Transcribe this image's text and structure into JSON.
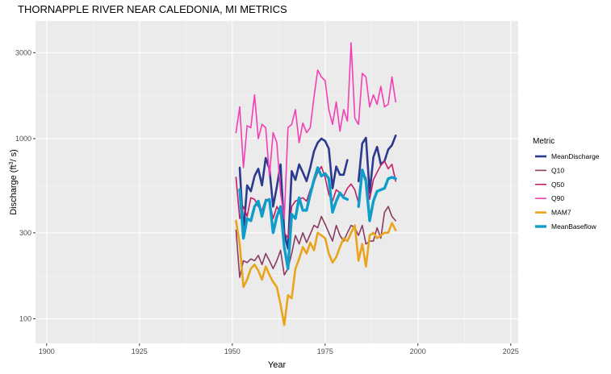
{
  "chart_data": {
    "type": "line",
    "title": "THORNAPPLE RIVER NEAR CALEDONIA, MI  METRICS",
    "xlabel": "Year",
    "ylabel_main": "Discharge (ft",
    "ylabel_sup": "3",
    "ylabel_tail": "/ s)",
    "y_scale": "log",
    "xlim": [
      1897,
      2027
    ],
    "ylim": [
      73,
      4500
    ],
    "x_ticks": [
      1900,
      1925,
      1950,
      1975,
      2000,
      2025
    ],
    "x_tick_labels": [
      "1900",
      "1925",
      "1950",
      "1975",
      "2000",
      "2025"
    ],
    "y_ticks": [
      100,
      300,
      1000,
      3000
    ],
    "y_tick_labels": [
      "100",
      "300",
      "1000",
      "3000"
    ],
    "grid": true,
    "legend_position": "right",
    "legend_title": "Metric",
    "series": [
      {
        "name": "MeanDischarge",
        "color": "#2b3a8f",
        "width": 2.6,
        "segments": [
          {
            "x": [
              1952,
              1953,
              1954,
              1955,
              1956,
              1957,
              1958,
              1959,
              1960,
              1961,
              1962,
              1963,
              1964,
              1965,
              1966,
              1967,
              1968,
              1969,
              1970,
              1971,
              1972,
              1973,
              1974,
              1975,
              1976,
              1977,
              1978,
              1979,
              1980,
              1981
            ],
            "y": [
              690,
              300,
              550,
              510,
              620,
              680,
              550,
              780,
              680,
              420,
              540,
              720,
              300,
              245,
              660,
              590,
              720,
              650,
              580,
              690,
              850,
              950,
              1000,
              970,
              880,
              530,
              700,
              630,
              630,
              760
            ]
          },
          {
            "x": [
              1984,
              1985,
              1986,
              1987,
              1988,
              1989,
              1990,
              1991,
              1992,
              1993,
              1994
            ],
            "y": [
              580,
              940,
              1010,
              500,
              790,
              900,
              720,
              750,
              870,
              920,
              1040
            ]
          }
        ]
      },
      {
        "name": "Q10",
        "color": "#8b3a62",
        "width": 1.6,
        "segments": [
          {
            "x": [
              1951,
              1952,
              1953,
              1954,
              1955,
              1956,
              1957,
              1958,
              1959,
              1960,
              1961,
              1962,
              1963,
              1964,
              1965,
              1966,
              1967,
              1968,
              1969,
              1970,
              1971,
              1972,
              1973,
              1974,
              1975,
              1976,
              1977,
              1978,
              1979,
              1980,
              1981,
              1982,
              1983,
              1984,
              1985,
              1986,
              1987,
              1988,
              1989,
              1990,
              1991,
              1992,
              1993,
              1994
            ],
            "y": [
              310,
              170,
              210,
              205,
              215,
              210,
              225,
              200,
              230,
              210,
              190,
              210,
              240,
              175,
              190,
              230,
              290,
              260,
              300,
              265,
              295,
              330,
              320,
              370,
              335,
              300,
              270,
              330,
              290,
              270,
              300,
              330,
              320,
              290,
              330,
              260,
              270,
              270,
              320,
              280,
              390,
              420,
              370,
              350
            ]
          }
        ]
      },
      {
        "name": "Q50",
        "color": "#c41e6a",
        "width": 1.6,
        "segments": [
          {
            "x": [
              1951,
              1952,
              1953,
              1954,
              1955,
              1956,
              1957,
              1958,
              1959,
              1960,
              1961,
              1962,
              1963,
              1964,
              1965,
              1966,
              1967,
              1968,
              1969,
              1970,
              1971,
              1972,
              1973,
              1974,
              1975,
              1976,
              1977,
              1978,
              1979,
              1980,
              1981,
              1982,
              1983,
              1984,
              1985,
              1986,
              1987,
              1988,
              1989,
              1990,
              1991,
              1992,
              1993,
              1994
            ],
            "y": [
              610,
              360,
              420,
              370,
              470,
              460,
              420,
              400,
              460,
              450,
              360,
              420,
              380,
              300,
              280,
              420,
              450,
              460,
              470,
              450,
              520,
              570,
              650,
              700,
              610,
              490,
              450,
              520,
              500,
              480,
              530,
              560,
              520,
              440,
              620,
              610,
              460,
              590,
              650,
              710,
              750,
              680,
              720,
              580
            ]
          }
        ]
      },
      {
        "name": "Q90",
        "color": "#f23fb6",
        "width": 1.6,
        "segments": [
          {
            "x": [
              1951,
              1952,
              1953,
              1954,
              1955,
              1956,
              1957,
              1958,
              1959,
              1960,
              1961,
              1962,
              1963,
              1964,
              1965,
              1966,
              1967,
              1968,
              1969,
              1970,
              1971,
              1972,
              1973,
              1974,
              1975,
              1976,
              1977,
              1978,
              1979,
              1980,
              1981,
              1982,
              1983,
              1984,
              1985,
              1986,
              1987,
              1988,
              1989,
              1990,
              1991,
              1992,
              1993,
              1994
            ],
            "y": [
              1080,
              1500,
              690,
              1180,
              1150,
              1750,
              1000,
              1200,
              1150,
              620,
              1080,
              950,
              500,
              360,
              1150,
              1200,
              1450,
              950,
              1220,
              1080,
              1150,
              1700,
              2400,
              2200,
              2100,
              1450,
              1200,
              1600,
              1100,
              1450,
              1250,
              3400,
              1300,
              1200,
              2300,
              2200,
              1500,
              1750,
              1550,
              1950,
              1500,
              1550,
              2200,
              1600
            ]
          }
        ]
      },
      {
        "name": "MAM7",
        "color": "#e9a41b",
        "width": 2.6,
        "segments": [
          {
            "x": [
              1951,
              1952,
              1953,
              1954,
              1955,
              1956,
              1957,
              1958,
              1959,
              1960,
              1961,
              1962,
              1963,
              1964,
              1965,
              1966,
              1967,
              1968,
              1969,
              1970,
              1971,
              1972,
              1973,
              1974,
              1975,
              1976,
              1977,
              1978,
              1979,
              1980,
              1981,
              1982,
              1983,
              1984,
              1985,
              1986,
              1987,
              1988,
              1989,
              1990,
              1991,
              1992,
              1993,
              1994
            ],
            "y": [
              350,
              260,
              150,
              165,
              190,
              200,
              185,
              165,
              195,
              175,
              160,
              150,
              120,
              92,
              135,
              130,
              190,
              215,
              250,
              230,
              265,
              240,
              300,
              290,
              280,
              230,
              205,
              220,
              250,
              280,
              270,
              300,
              330,
              210,
              260,
              195,
              290,
              300,
              280,
              290,
              300,
              300,
              340,
              310
            ]
          }
        ]
      },
      {
        "name": "MeanBaseflow",
        "color": "#0d9ec9",
        "width": 3.4,
        "segments": [
          {
            "x": [
              1952,
              1953,
              1954,
              1955,
              1956,
              1957,
              1958,
              1959,
              1960,
              1961,
              1962,
              1963,
              1964,
              1965,
              1966,
              1967,
              1968,
              1969,
              1970,
              1971,
              1972,
              1973,
              1974,
              1975,
              1976,
              1977,
              1978,
              1979,
              1980,
              1981
            ],
            "y": [
              520,
              280,
              360,
              350,
              420,
              450,
              370,
              450,
              460,
              300,
              370,
              420,
              250,
              190,
              380,
              360,
              470,
              400,
              400,
              490,
              590,
              690,
              620,
              640,
              600,
              390,
              450,
              500,
              470,
              460
            ]
          },
          {
            "x": [
              1984,
              1985,
              1986,
              1987,
              1988,
              1989,
              1990,
              1991,
              1992,
              1993,
              1994
            ],
            "y": [
              420,
              670,
              580,
              350,
              450,
              510,
              520,
              530,
              600,
              610,
              600
            ]
          }
        ]
      }
    ]
  }
}
